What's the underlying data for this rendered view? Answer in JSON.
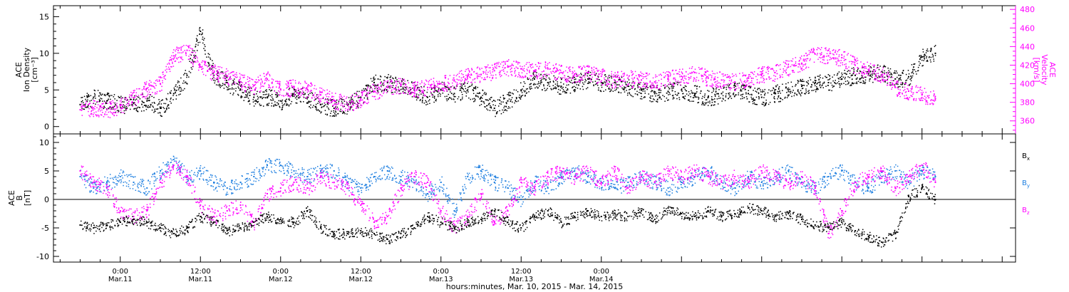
{
  "chart_data": [
    {
      "type": "scatter",
      "panel": "ion-density-velocity",
      "ylabel_left": [
        "ACE",
        "Ion Density",
        "[cm⁻³]"
      ],
      "ylabel_right": [
        "ACE",
        "Velocity",
        "[km/s]"
      ],
      "ylim_left": [
        -1,
        16.5
      ],
      "ylim_right": [
        346,
        484
      ],
      "yticks_left": [
        "0",
        "5",
        "10",
        "15"
      ],
      "yticks_left_values": [
        0,
        5,
        10,
        15
      ],
      "yticks_right": [
        "360",
        "380",
        "400",
        "420",
        "440",
        "460",
        "480"
      ],
      "yticks_right_values": [
        360,
        380,
        400,
        420,
        440,
        460,
        480
      ],
      "colors": {
        "density": "#000000",
        "velocity": "#ff00ff"
      },
      "series": [
        {
          "axis": "left",
          "color": "#000000",
          "x": [
            -6,
            -4,
            -2,
            0,
            2,
            4,
            6,
            8,
            10,
            12,
            14,
            16,
            18,
            20,
            22,
            24,
            26,
            28,
            30,
            32,
            34,
            36,
            38,
            40,
            42,
            44,
            46,
            48,
            50,
            52,
            54,
            56,
            58,
            60,
            62,
            64,
            66,
            68,
            70,
            72,
            74,
            76,
            78,
            80,
            82,
            84,
            86,
            88,
            90,
            92,
            94,
            96,
            98,
            100,
            102,
            104,
            106,
            108,
            110,
            112,
            114,
            116,
            118,
            120,
            122
          ],
          "values": [
            3,
            4,
            3.5,
            3,
            3.2,
            3.5,
            2.5,
            4.5,
            7,
            13,
            7,
            6,
            5,
            4,
            4,
            3.5,
            4.5,
            4,
            3,
            2.5,
            3,
            4,
            6,
            6,
            5.5,
            5,
            4,
            5,
            4.5,
            5,
            4,
            2.5,
            3.5,
            5,
            6.5,
            6,
            5.5,
            6,
            6.5,
            6,
            6,
            5.5,
            5,
            4.5,
            4.8,
            5,
            4.5,
            4,
            4.5,
            5,
            4.5,
            4,
            4.5,
            5,
            5.5,
            6,
            6,
            6.5,
            7,
            7.2,
            7.5,
            6.5,
            6.8,
            9.5,
            10
          ]
        },
        {
          "axis": "right",
          "color": "#ff00ff",
          "x": [
            -6,
            -4,
            -2,
            0,
            2,
            4,
            6,
            8,
            10,
            12,
            14,
            16,
            18,
            20,
            22,
            24,
            26,
            28,
            30,
            32,
            34,
            36,
            38,
            40,
            42,
            44,
            46,
            48,
            50,
            52,
            54,
            56,
            58,
            60,
            62,
            64,
            66,
            68,
            70,
            72,
            74,
            76,
            78,
            80,
            82,
            84,
            86,
            88,
            90,
            92,
            94,
            96,
            98,
            100,
            102,
            104,
            106,
            108,
            110,
            112,
            114,
            116,
            118,
            120,
            122
          ],
          "values": [
            372,
            374,
            372,
            376,
            385,
            395,
            400,
            430,
            436,
            418,
            412,
            408,
            402,
            398,
            405,
            394,
            396,
            394,
            388,
            382,
            378,
            384,
            392,
            396,
            398,
            394,
            396,
            400,
            404,
            408,
            410,
            414,
            418,
            416,
            414,
            416,
            412,
            410,
            412,
            408,
            404,
            406,
            404,
            402,
            406,
            408,
            412,
            406,
            404,
            402,
            406,
            410,
            412,
            418,
            422,
            432,
            430,
            428,
            420,
            414,
            410,
            396,
            392,
            388,
            384
          ]
        }
      ]
    },
    {
      "type": "scatter",
      "panel": "magnetic-field",
      "ylabel": [
        "ACE",
        "B",
        "[nT]"
      ],
      "ylim": [
        -11,
        11.5
      ],
      "yticks": [
        "-10",
        "-5",
        "0",
        "5",
        "10"
      ],
      "yticks_values": [
        -10,
        -5,
        0,
        5,
        10
      ],
      "legend": [
        {
          "label": "B",
          "sub": "x",
          "color": "#000000"
        },
        {
          "label": "B",
          "sub": "y",
          "color": "#1e7fe0"
        },
        {
          "label": "B",
          "sub": "z",
          "color": "#ff00ff"
        }
      ],
      "series": [
        {
          "color": "#000000",
          "x": [
            -6,
            -4,
            -2,
            0,
            2,
            4,
            6,
            8,
            10,
            12,
            14,
            16,
            18,
            20,
            22,
            24,
            26,
            28,
            30,
            32,
            34,
            36,
            38,
            40,
            42,
            44,
            46,
            48,
            50,
            52,
            54,
            56,
            58,
            60,
            62,
            64,
            66,
            68,
            70,
            72,
            74,
            76,
            78,
            80,
            82,
            84,
            86,
            88,
            90,
            92,
            94,
            96,
            98,
            100,
            102,
            104,
            106,
            108,
            110,
            112,
            114,
            116,
            118,
            120,
            122
          ],
          "values": [
            -4.5,
            -5,
            -4.5,
            -4,
            -3.5,
            -4,
            -5,
            -6,
            -5,
            -3,
            -4,
            -5.5,
            -5,
            -4,
            -3,
            -3.5,
            -4,
            -2,
            -5,
            -6,
            -6,
            -5.5,
            -6,
            -7,
            -6,
            -5,
            -3,
            -4,
            -5,
            -4,
            -3.5,
            -2,
            -4,
            -5,
            -3,
            -2,
            -4,
            -3,
            -2,
            -3,
            -2.5,
            -3,
            -2,
            -3.5,
            -1.5,
            -2.5,
            -3,
            -2,
            -3,
            -2.5,
            -1.5,
            -2,
            -3,
            -2.5,
            -3.5,
            -4.5,
            -5,
            -4,
            -5.5,
            -6.5,
            -7.5,
            -6,
            0.5,
            2,
            0
          ]
        },
        {
          "color": "#1e7fe0",
          "x": [
            -6,
            -4,
            -2,
            0,
            2,
            4,
            6,
            8,
            10,
            12,
            14,
            16,
            18,
            20,
            22,
            24,
            26,
            28,
            30,
            32,
            34,
            36,
            38,
            40,
            42,
            44,
            46,
            48,
            50,
            52,
            54,
            56,
            58,
            60,
            62,
            64,
            66,
            68,
            70,
            72,
            74,
            76,
            78,
            80,
            82,
            84,
            86,
            88,
            90,
            92,
            94,
            96,
            98,
            100,
            102,
            104,
            106,
            108,
            110,
            112,
            114,
            116,
            118,
            120,
            122
          ],
          "values": [
            4,
            2,
            3,
            4,
            3,
            2,
            5,
            7,
            4,
            5,
            3,
            2,
            3,
            4,
            6,
            6,
            5,
            4,
            5,
            5,
            3,
            2,
            4,
            5,
            4,
            3,
            1,
            3,
            -2,
            4,
            5,
            3,
            2,
            0,
            3,
            2,
            4,
            5,
            4,
            3,
            2,
            3,
            4,
            3,
            2,
            3,
            4,
            5,
            3,
            2,
            4,
            3,
            4,
            5,
            3,
            2,
            4,
            5,
            3,
            2,
            4,
            5,
            3,
            5,
            4
          ]
        },
        {
          "color": "#ff00ff",
          "x": [
            -6,
            -4,
            -2,
            0,
            2,
            4,
            6,
            8,
            10,
            12,
            14,
            16,
            18,
            20,
            22,
            24,
            26,
            28,
            30,
            32,
            34,
            36,
            38,
            40,
            42,
            44,
            46,
            48,
            50,
            52,
            54,
            56,
            58,
            60,
            62,
            64,
            66,
            68,
            70,
            72,
            74,
            76,
            78,
            80,
            82,
            84,
            86,
            88,
            90,
            92,
            94,
            96,
            98,
            100,
            102,
            104,
            106,
            108,
            110,
            112,
            114,
            116,
            118,
            120,
            122
          ],
          "values": [
            5,
            3,
            2,
            -2,
            -3,
            -2,
            3,
            6,
            4,
            -1,
            -3,
            -2,
            -1,
            -4,
            1,
            2,
            3,
            2,
            4,
            3,
            2,
            -1,
            -4,
            -3,
            2,
            4,
            3,
            -2,
            -5,
            -3,
            1,
            -4,
            -2,
            3,
            2,
            4,
            5,
            4,
            5,
            3,
            5,
            2,
            4,
            3,
            5,
            4,
            5,
            4,
            3,
            4,
            3,
            5,
            4,
            3,
            4,
            2,
            -6,
            -2,
            3,
            4,
            5,
            2,
            4,
            6,
            3
          ]
        }
      ]
    }
  ],
  "x_axis": {
    "xlim": [
      -10,
      134
    ],
    "xlabel": "hours:minutes, Mar. 10, 2015 - Mar. 14, 2015",
    "major_ticks": [
      0,
      12,
      24,
      36,
      48,
      60,
      72
    ],
    "tick_labels": [
      {
        "time": "0:00",
        "date": "Mar.11"
      },
      {
        "time": "12:00",
        "date": "Mar.11"
      },
      {
        "time": "0:00",
        "date": "Mar.12"
      },
      {
        "time": "12:00",
        "date": "Mar.12"
      },
      {
        "time": "0:00",
        "date": "Mar.13"
      },
      {
        "time": "12:00",
        "date": "Mar.13"
      },
      {
        "time": "0:00",
        "date": "Mar.14"
      }
    ]
  }
}
